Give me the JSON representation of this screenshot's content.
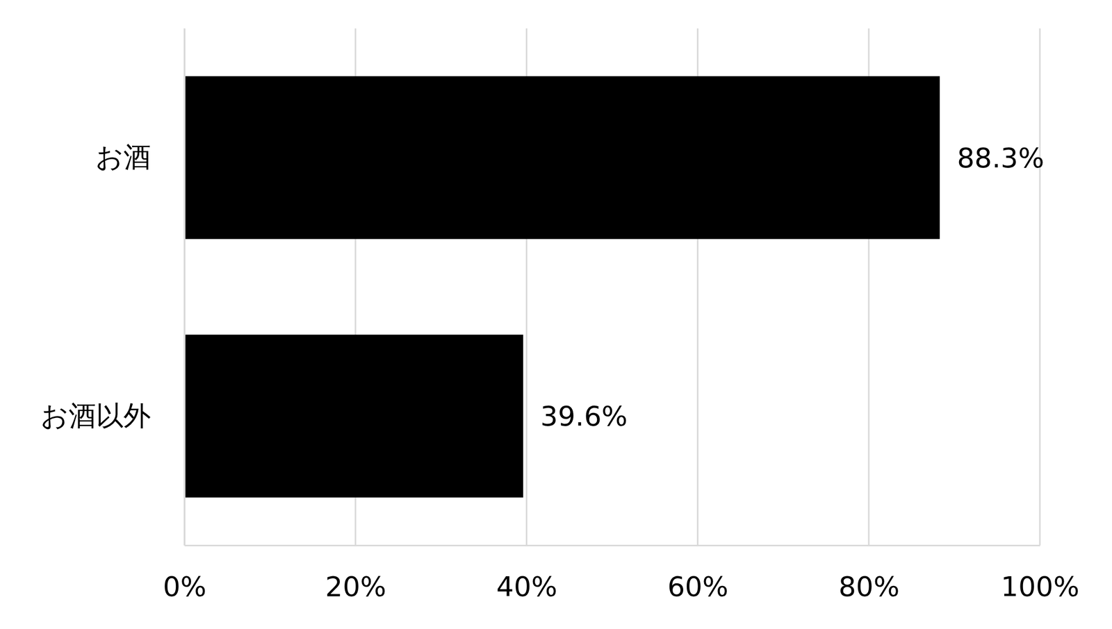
{
  "chart_data": {
    "type": "bar",
    "orientation": "horizontal",
    "categories": [
      "お酒",
      "お酒以外"
    ],
    "values": [
      88.3,
      39.6
    ],
    "value_labels": [
      "88.3%",
      "39.6%"
    ],
    "color": "#000000",
    "xlim": [
      0,
      100
    ],
    "xticks": [
      {
        "value": 0,
        "label": "0%"
      },
      {
        "value": 20,
        "label": "20%"
      },
      {
        "value": 40,
        "label": "40%"
      },
      {
        "value": 60,
        "label": "60%"
      },
      {
        "value": 80,
        "label": "80%"
      },
      {
        "value": 100,
        "label": "100%"
      }
    ],
    "grid": true,
    "data_labels": true
  }
}
